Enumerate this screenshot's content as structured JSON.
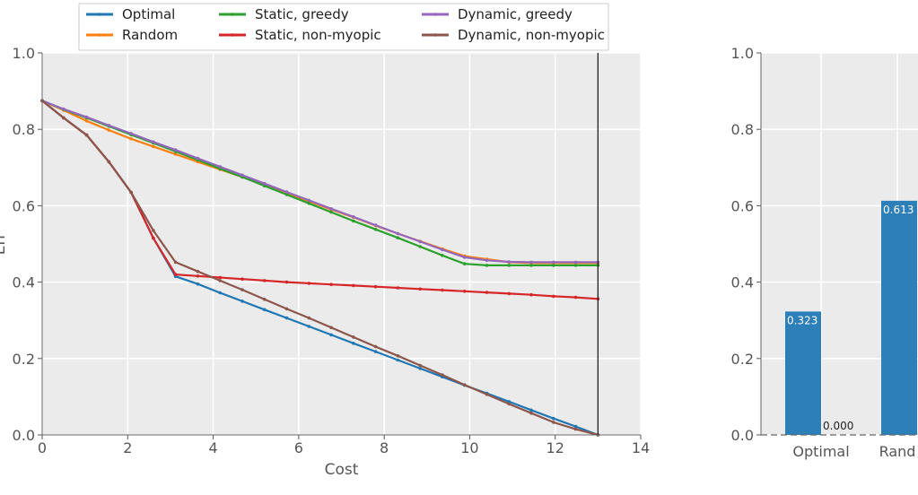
{
  "chart_data": [
    {
      "type": "line",
      "xlabel": "Cost",
      "ylabel": "Err",
      "xlim": [
        0,
        14
      ],
      "ylim": [
        0,
        1.0
      ],
      "x_ticks": [
        "0",
        "2",
        "4",
        "6",
        "8",
        "10",
        "12",
        "14"
      ],
      "y_ticks": [
        "0.0",
        "0.2",
        "0.4",
        "0.6",
        "0.8",
        "1.0"
      ],
      "grid": true,
      "legend_position": "top",
      "vline_x": 13,
      "series": [
        {
          "name": "Optimal",
          "color": "#1f77b4",
          "points": [
            [
              0,
              0.875
            ],
            [
              0.5,
              0.83
            ],
            [
              1.04,
              0.785
            ],
            [
              1.56,
              0.715
            ],
            [
              2.08,
              0.635
            ],
            [
              2.6,
              0.515
            ],
            [
              3.12,
              0.415
            ],
            [
              3.64,
              0.395
            ],
            [
              4.16,
              0.372
            ],
            [
              4.68,
              0.35
            ],
            [
              5.2,
              0.328
            ],
            [
              5.72,
              0.306
            ],
            [
              6.24,
              0.284
            ],
            [
              6.76,
              0.262
            ],
            [
              7.28,
              0.24
            ],
            [
              7.8,
              0.218
            ],
            [
              8.32,
              0.196
            ],
            [
              8.84,
              0.174
            ],
            [
              9.36,
              0.152
            ],
            [
              9.88,
              0.13
            ],
            [
              10.4,
              0.109
            ],
            [
              10.92,
              0.087
            ],
            [
              11.44,
              0.065
            ],
            [
              11.96,
              0.043
            ],
            [
              12.48,
              0.022
            ],
            [
              13,
              0.0
            ]
          ]
        },
        {
          "name": "Random",
          "color": "#ff7f0e",
          "points": [
            [
              0,
              0.875
            ],
            [
              0.5,
              0.85
            ],
            [
              1.04,
              0.822
            ],
            [
              1.56,
              0.798
            ],
            [
              2.08,
              0.775
            ],
            [
              2.6,
              0.755
            ],
            [
              3.12,
              0.735
            ],
            [
              3.64,
              0.715
            ],
            [
              4.16,
              0.695
            ],
            [
              4.68,
              0.675
            ],
            [
              5.2,
              0.655
            ],
            [
              5.72,
              0.633
            ],
            [
              6.24,
              0.612
            ],
            [
              6.76,
              0.59
            ],
            [
              7.28,
              0.57
            ],
            [
              7.8,
              0.548
            ],
            [
              8.32,
              0.527
            ],
            [
              8.84,
              0.507
            ],
            [
              9.36,
              0.487
            ],
            [
              9.88,
              0.468
            ],
            [
              10.4,
              0.46
            ],
            [
              10.92,
              0.452
            ],
            [
              11.44,
              0.45
            ],
            [
              11.96,
              0.45
            ],
            [
              12.48,
              0.45
            ],
            [
              13,
              0.45
            ]
          ]
        },
        {
          "name": "Static, greedy",
          "color": "#2ca02c",
          "points": [
            [
              0,
              0.875
            ],
            [
              0.5,
              0.852
            ],
            [
              1.04,
              0.83
            ],
            [
              1.56,
              0.808
            ],
            [
              2.08,
              0.786
            ],
            [
              2.6,
              0.764
            ],
            [
              3.12,
              0.742
            ],
            [
              3.64,
              0.72
            ],
            [
              4.16,
              0.697
            ],
            [
              4.68,
              0.675
            ],
            [
              5.2,
              0.652
            ],
            [
              5.72,
              0.629
            ],
            [
              6.24,
              0.606
            ],
            [
              6.76,
              0.583
            ],
            [
              7.28,
              0.56
            ],
            [
              7.8,
              0.538
            ],
            [
              8.32,
              0.516
            ],
            [
              8.84,
              0.493
            ],
            [
              9.36,
              0.47
            ],
            [
              9.88,
              0.448
            ],
            [
              10.4,
              0.444
            ],
            [
              10.92,
              0.444
            ],
            [
              11.44,
              0.444
            ],
            [
              11.96,
              0.444
            ],
            [
              12.48,
              0.444
            ],
            [
              13,
              0.444
            ]
          ]
        },
        {
          "name": "Static, non-myopic",
          "color": "#d62728",
          "points": [
            [
              0,
              0.875
            ],
            [
              0.5,
              0.83
            ],
            [
              1.04,
              0.785
            ],
            [
              1.56,
              0.715
            ],
            [
              2.08,
              0.635
            ],
            [
              2.6,
              0.515
            ],
            [
              3.12,
              0.42
            ],
            [
              3.64,
              0.416
            ],
            [
              4.16,
              0.412
            ],
            [
              4.68,
              0.408
            ],
            [
              5.2,
              0.404
            ],
            [
              5.72,
              0.4
            ],
            [
              6.24,
              0.397
            ],
            [
              6.76,
              0.394
            ],
            [
              7.28,
              0.391
            ],
            [
              7.8,
              0.388
            ],
            [
              8.32,
              0.385
            ],
            [
              8.84,
              0.382
            ],
            [
              9.36,
              0.379
            ],
            [
              9.88,
              0.376
            ],
            [
              10.4,
              0.373
            ],
            [
              10.92,
              0.37
            ],
            [
              11.44,
              0.367
            ],
            [
              11.96,
              0.363
            ],
            [
              12.48,
              0.36
            ],
            [
              13,
              0.356
            ]
          ]
        },
        {
          "name": "Dynamic, greedy",
          "color": "#9467bd",
          "points": [
            [
              0,
              0.875
            ],
            [
              0.5,
              0.853
            ],
            [
              1.04,
              0.832
            ],
            [
              1.56,
              0.81
            ],
            [
              2.08,
              0.789
            ],
            [
              2.6,
              0.767
            ],
            [
              3.12,
              0.746
            ],
            [
              3.64,
              0.724
            ],
            [
              4.16,
              0.702
            ],
            [
              4.68,
              0.68
            ],
            [
              5.2,
              0.658
            ],
            [
              5.72,
              0.636
            ],
            [
              6.24,
              0.614
            ],
            [
              6.76,
              0.592
            ],
            [
              7.28,
              0.571
            ],
            [
              7.8,
              0.549
            ],
            [
              8.32,
              0.527
            ],
            [
              8.84,
              0.506
            ],
            [
              9.36,
              0.485
            ],
            [
              9.88,
              0.465
            ],
            [
              10.4,
              0.457
            ],
            [
              10.92,
              0.453
            ],
            [
              11.44,
              0.452
            ],
            [
              11.96,
              0.452
            ],
            [
              12.48,
              0.452
            ],
            [
              13,
              0.452
            ]
          ]
        },
        {
          "name": "Dynamic, non-myopic",
          "color": "#8c564b",
          "points": [
            [
              0,
              0.875
            ],
            [
              0.5,
              0.83
            ],
            [
              1.04,
              0.785
            ],
            [
              1.56,
              0.715
            ],
            [
              2.08,
              0.635
            ],
            [
              2.6,
              0.535
            ],
            [
              3.12,
              0.452
            ],
            [
              3.64,
              0.428
            ],
            [
              4.16,
              0.404
            ],
            [
              4.68,
              0.38
            ],
            [
              5.2,
              0.355
            ],
            [
              5.72,
              0.33
            ],
            [
              6.24,
              0.306
            ],
            [
              6.76,
              0.281
            ],
            [
              7.28,
              0.256
            ],
            [
              7.8,
              0.231
            ],
            [
              8.32,
              0.207
            ],
            [
              8.84,
              0.182
            ],
            [
              9.36,
              0.157
            ],
            [
              9.88,
              0.131
            ],
            [
              10.4,
              0.106
            ],
            [
              10.92,
              0.081
            ],
            [
              11.44,
              0.057
            ],
            [
              11.96,
              0.033
            ],
            [
              12.48,
              0.015
            ],
            [
              13,
              0.0
            ]
          ]
        }
      ]
    },
    {
      "type": "bar",
      "categories": [
        "Optimal",
        "Rand"
      ],
      "y_ticks": [
        "0.0",
        "0.2",
        "0.4",
        "0.6",
        "0.8",
        "1.0"
      ],
      "ylim": [
        0,
        1.0
      ],
      "grid": true,
      "bars": [
        {
          "category": "Optimal",
          "value": 0.323,
          "label": "0.323",
          "color": "#2c7fb8"
        },
        {
          "category": "Optimal",
          "value": 0.0,
          "label": "0.000",
          "color": "#2c7fb8"
        },
        {
          "category": "Rand",
          "value": 0.613,
          "label": "0.613",
          "color": "#2c7fb8"
        }
      ]
    }
  ]
}
